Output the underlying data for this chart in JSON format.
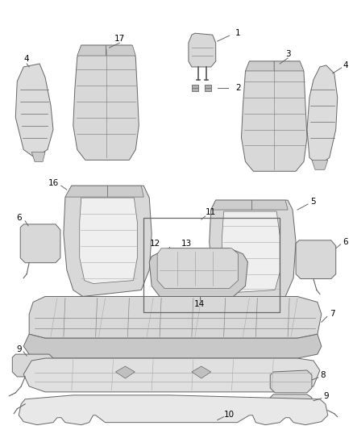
{
  "background_color": "#ffffff",
  "line_color": "#666666",
  "fill_color": "#e8e8e8",
  "fill_dark": "#d0d0d0",
  "fill_light": "#f2f2f2",
  "figsize": [
    4.38,
    5.33
  ],
  "dpi": 100
}
